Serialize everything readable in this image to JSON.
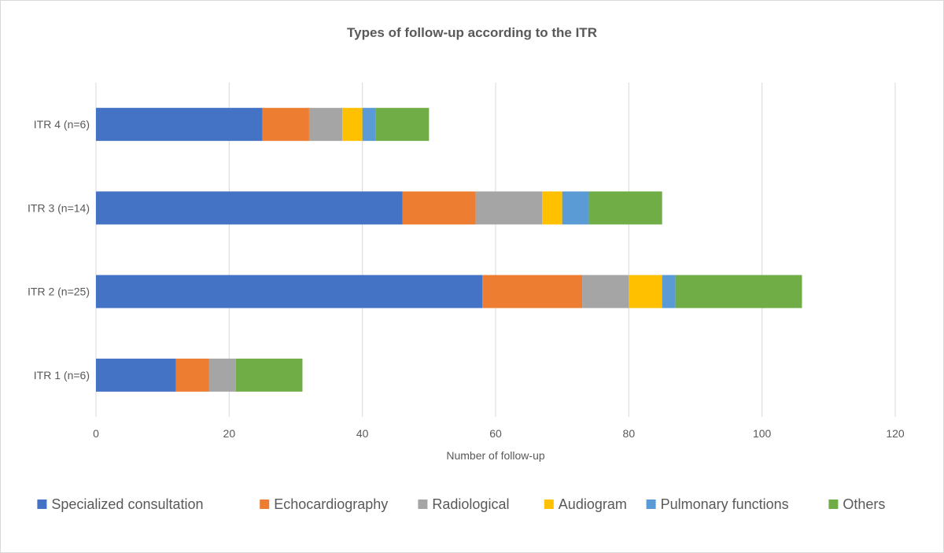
{
  "chart_data": {
    "type": "bar",
    "orientation": "horizontal",
    "stacked": true,
    "title": "Types of follow-up according to the ITR",
    "xlabel": "Number of follow-up",
    "ylabel": "",
    "xlim": [
      0,
      120
    ],
    "xticks": [
      0,
      20,
      40,
      60,
      80,
      100,
      120
    ],
    "grid": true,
    "legend_position": "bottom",
    "categories": [
      "ITR 1 (n=6)",
      "ITR 2 (n=25)",
      "ITR 3 (n=14)",
      "ITR 4 (n=6)"
    ],
    "series": [
      {
        "name": "Specialized consultation",
        "color": "#4472C4",
        "values": [
          12,
          58,
          46,
          25
        ]
      },
      {
        "name": "Echocardiography",
        "color": "#ED7D31",
        "values": [
          5,
          15,
          11,
          7
        ]
      },
      {
        "name": "Radiological",
        "color": "#A5A5A5",
        "values": [
          4,
          7,
          10,
          5
        ]
      },
      {
        "name": "Audiogram",
        "color": "#FFC000",
        "values": [
          0,
          5,
          3,
          3
        ]
      },
      {
        "name": "Pulmonary functions",
        "color": "#5B9BD5",
        "values": [
          0,
          2,
          4,
          2
        ]
      },
      {
        "name": "Others",
        "color": "#70AD47",
        "values": [
          10,
          19,
          11,
          8
        ]
      }
    ]
  }
}
